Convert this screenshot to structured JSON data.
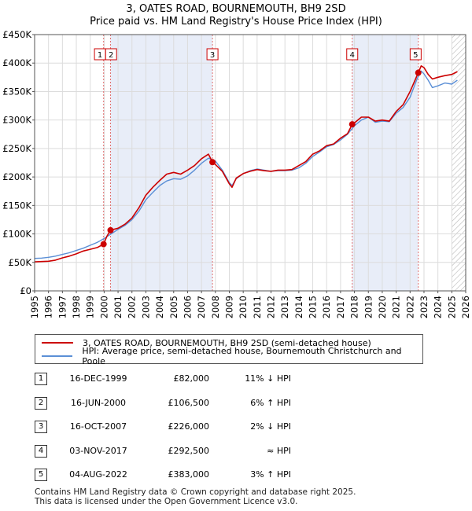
{
  "header": {
    "title_line1": "3, OATES ROAD, BOURNEMOUTH, BH9 2SD",
    "title_line2": "Price paid vs. HM Land Registry's House Price Index (HPI)"
  },
  "colors": {
    "property_line": "#cc0000",
    "hpi_line": "#5b8fd6",
    "shade": "#e8edf8",
    "marker_box_border": "#cc0000",
    "vline": "#e07070"
  },
  "chart_data": {
    "type": "line",
    "title": "Price paid vs. HM Land Registry's House Price Index (HPI)",
    "xlim": [
      1995,
      2026
    ],
    "ylim": [
      0,
      450000
    ],
    "x_ticks": [
      1995,
      1996,
      1997,
      1998,
      1999,
      2000,
      2001,
      2002,
      2003,
      2004,
      2005,
      2006,
      2007,
      2008,
      2009,
      2010,
      2011,
      2012,
      2013,
      2014,
      2015,
      2016,
      2017,
      2018,
      2019,
      2020,
      2021,
      2022,
      2023,
      2024,
      2025,
      2026
    ],
    "y_ticks": [
      {
        "value": 0,
        "label": "£0"
      },
      {
        "value": 50000,
        "label": "£50K"
      },
      {
        "value": 100000,
        "label": "£100K"
      },
      {
        "value": 150000,
        "label": "£150K"
      },
      {
        "value": 200000,
        "label": "£200K"
      },
      {
        "value": 250000,
        "label": "£250K"
      },
      {
        "value": 300000,
        "label": "£300K"
      },
      {
        "value": 350000,
        "label": "£350K"
      },
      {
        "value": 400000,
        "label": "£400K"
      },
      {
        "value": 450000,
        "label": "£450K"
      }
    ],
    "shaded_regions": [
      [
        2000.46,
        2007.79
      ],
      [
        2017.84,
        2022.59
      ]
    ],
    "hatched_region": [
      2025.0,
      2026
    ],
    "series": [
      {
        "name": "3, OATES ROAD, BOURNEMOUTH, BH9 2SD (semi-detached house)",
        "x": [
          1995.0,
          1995.5,
          1996.0,
          1996.5,
          1997.0,
          1997.5,
          1998.0,
          1998.5,
          1999.0,
          1999.5,
          1999.96,
          2000.2,
          2000.46,
          2001.0,
          2001.5,
          2002.0,
          2002.5,
          2003.0,
          2003.5,
          2004.0,
          2004.5,
          2005.0,
          2005.5,
          2006.0,
          2006.5,
          2007.0,
          2007.5,
          2007.79,
          2008.0,
          2008.5,
          2009.0,
          2009.2,
          2009.5,
          2010.0,
          2010.5,
          2011.0,
          2011.5,
          2012.0,
          2012.5,
          2013.0,
          2013.5,
          2014.0,
          2014.5,
          2015.0,
          2015.5,
          2016.0,
          2016.5,
          2017.0,
          2017.5,
          2017.84,
          2018.0,
          2018.5,
          2019.0,
          2019.5,
          2020.0,
          2020.5,
          2021.0,
          2021.5,
          2022.0,
          2022.59,
          2022.8,
          2023.0,
          2023.3,
          2023.6,
          2024.0,
          2024.5,
          2025.0,
          2025.4
        ],
        "y": [
          51000,
          51500,
          52000,
          54000,
          58000,
          61000,
          65000,
          70000,
          73000,
          76000,
          82000,
          96000,
          106500,
          110000,
          117000,
          128000,
          146000,
          168000,
          182000,
          194000,
          205000,
          208000,
          205000,
          212000,
          220000,
          232000,
          240000,
          226000,
          222000,
          210000,
          188000,
          182000,
          198000,
          206000,
          210000,
          213000,
          211000,
          210000,
          212000,
          212000,
          213000,
          220000,
          227000,
          240000,
          246000,
          255000,
          258000,
          268000,
          276000,
          292500,
          295000,
          305000,
          305000,
          298000,
          300000,
          298000,
          315000,
          327000,
          350000,
          383000,
          395000,
          392000,
          380000,
          372000,
          375000,
          378000,
          380000,
          385000
        ]
      },
      {
        "name": "HPI: Average price, semi-detached house, Bournemouth Christchurch and Poole",
        "x": [
          1995.0,
          1995.5,
          1996.0,
          1996.5,
          1997.0,
          1997.5,
          1998.0,
          1998.5,
          1999.0,
          1999.5,
          2000.0,
          2000.5,
          2001.0,
          2001.5,
          2002.0,
          2002.5,
          2003.0,
          2003.5,
          2004.0,
          2004.5,
          2005.0,
          2005.5,
          2006.0,
          2006.5,
          2007.0,
          2007.5,
          2008.0,
          2008.5,
          2009.0,
          2009.2,
          2009.5,
          2010.0,
          2010.5,
          2011.0,
          2011.5,
          2012.0,
          2012.5,
          2013.0,
          2013.5,
          2014.0,
          2014.5,
          2015.0,
          2015.5,
          2016.0,
          2016.5,
          2017.0,
          2017.5,
          2018.0,
          2018.5,
          2019.0,
          2019.5,
          2020.0,
          2020.5,
          2021.0,
          2021.5,
          2022.0,
          2022.5,
          2022.8,
          2023.0,
          2023.3,
          2023.6,
          2024.0,
          2024.5,
          2025.0,
          2025.4
        ],
        "y": [
          57000,
          57500,
          59000,
          61000,
          64000,
          67000,
          71000,
          75000,
          80000,
          85000,
          92000,
          100000,
          108000,
          115000,
          125000,
          140000,
          160000,
          173000,
          185000,
          193000,
          197000,
          196000,
          202000,
          212000,
          224000,
          233000,
          228000,
          212000,
          190000,
          185000,
          197000,
          206000,
          211000,
          214000,
          212000,
          210000,
          211000,
          211000,
          212000,
          216000,
          224000,
          236000,
          244000,
          253000,
          257000,
          265000,
          275000,
          290000,
          300000,
          305000,
          296000,
          298000,
          297000,
          312000,
          322000,
          340000,
          372000,
          386000,
          381000,
          370000,
          357000,
          360000,
          365000,
          363000,
          370000
        ]
      }
    ],
    "markers": [
      {
        "label": "1",
        "x": 1999.96,
        "y": 82000,
        "box_x": 1999.7
      },
      {
        "label": "2",
        "x": 2000.46,
        "y": 106500,
        "box_x": 2000.5
      },
      {
        "label": "3",
        "x": 2007.79,
        "y": 226000,
        "box_x": 2007.79
      },
      {
        "label": "4",
        "x": 2017.84,
        "y": 292500,
        "box_x": 2017.84
      },
      {
        "label": "5",
        "x": 2022.59,
        "y": 383000,
        "box_x": 2022.4
      }
    ]
  },
  "legend": {
    "property_label": "3, OATES ROAD, BOURNEMOUTH, BH9 2SD (semi-detached house)",
    "hpi_label": "HPI: Average price, semi-detached house, Bournemouth Christchurch and Poole"
  },
  "transactions": [
    {
      "num": "1",
      "date": "16-DEC-1999",
      "price": "£82,000",
      "hpi": "11% ↓ HPI"
    },
    {
      "num": "2",
      "date": "16-JUN-2000",
      "price": "£106,500",
      "hpi": "6% ↑ HPI"
    },
    {
      "num": "3",
      "date": "16-OCT-2007",
      "price": "£226,000",
      "hpi": "2% ↓ HPI"
    },
    {
      "num": "4",
      "date": "03-NOV-2017",
      "price": "£292,500",
      "hpi": "≈ HPI"
    },
    {
      "num": "5",
      "date": "04-AUG-2022",
      "price": "£383,000",
      "hpi": "3% ↑ HPI"
    }
  ],
  "footer": {
    "line1": "Contains HM Land Registry data © Crown copyright and database right 2025.",
    "line2": "This data is licensed under the Open Government Licence v3.0."
  }
}
